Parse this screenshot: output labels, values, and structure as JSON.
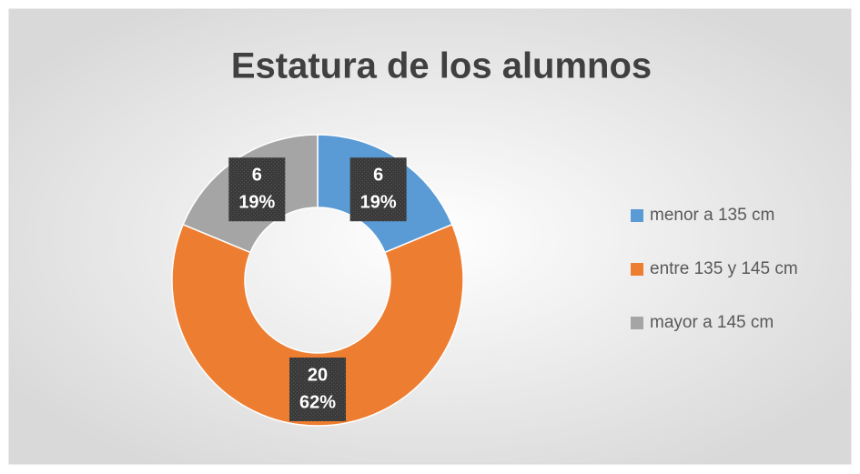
{
  "chart_data": {
    "type": "donut",
    "title": "Estatura de los alumnos",
    "categories": [
      "menor a 135 cm",
      "entre 135 y 145 cm",
      "mayor a 145 cm"
    ],
    "values": [
      6,
      20,
      6
    ],
    "percent_labels": [
      "19%",
      "62%",
      "19%"
    ],
    "colors": [
      "#5B9BD5",
      "#ED7D31",
      "#A5A5A5"
    ],
    "legend": "right"
  }
}
